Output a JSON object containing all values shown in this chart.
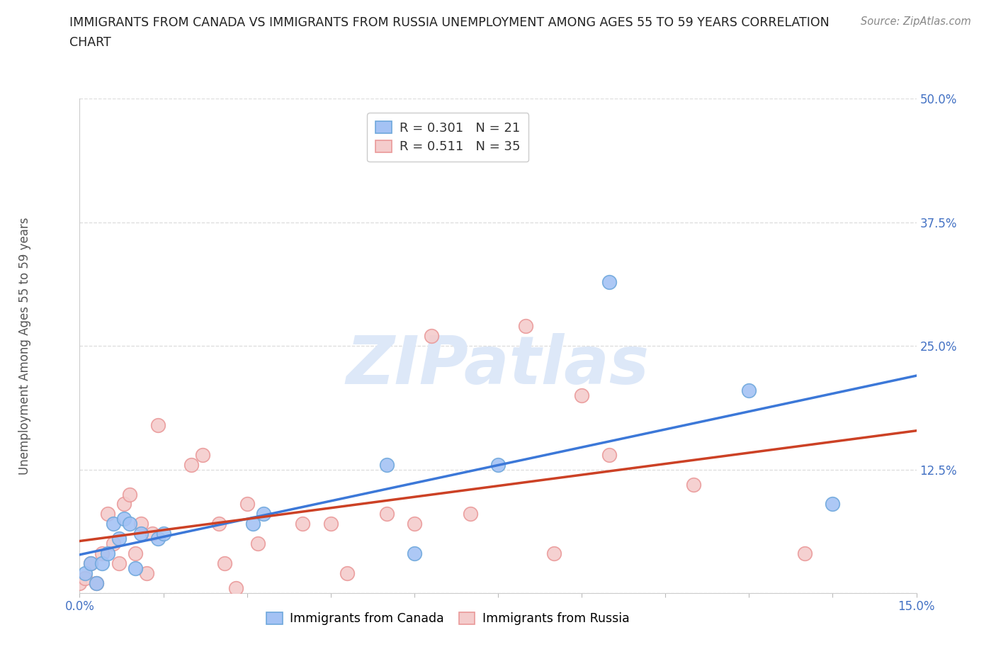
{
  "title_line1": "IMMIGRANTS FROM CANADA VS IMMIGRANTS FROM RUSSIA UNEMPLOYMENT AMONG AGES 55 TO 59 YEARS CORRELATION",
  "title_line2": "CHART",
  "source": "Source: ZipAtlas.com",
  "ylabel": "Unemployment Among Ages 55 to 59 years",
  "xlim": [
    0.0,
    0.15
  ],
  "ylim": [
    0.0,
    0.5
  ],
  "ytick_positions": [
    0.0,
    0.125,
    0.25,
    0.375,
    0.5
  ],
  "ytick_labels": [
    "",
    "12.5%",
    "25.0%",
    "37.5%",
    "50.0%"
  ],
  "xtick_positions": [
    0.0,
    0.015,
    0.03,
    0.045,
    0.06,
    0.075,
    0.09,
    0.105,
    0.12,
    0.135,
    0.15
  ],
  "xtick_labels": [
    "0.0%",
    "",
    "",
    "",
    "",
    "",
    "",
    "",
    "",
    "",
    "15.0%"
  ],
  "canada_color_face": "#a4c2f4",
  "canada_color_edge": "#6fa8dc",
  "russia_color_face": "#f4cccc",
  "russia_color_edge": "#ea9999",
  "canada_line_color": "#3c78d8",
  "russia_line_color": "#cc4125",
  "legend_canada_R": "0.301",
  "legend_canada_N": "21",
  "legend_russia_R": "0.511",
  "legend_russia_N": "35",
  "canada_x": [
    0.001,
    0.002,
    0.003,
    0.004,
    0.005,
    0.006,
    0.007,
    0.008,
    0.009,
    0.01,
    0.011,
    0.014,
    0.015,
    0.031,
    0.033,
    0.055,
    0.06,
    0.075,
    0.095,
    0.12,
    0.135
  ],
  "canada_y": [
    0.02,
    0.03,
    0.01,
    0.03,
    0.04,
    0.07,
    0.055,
    0.075,
    0.07,
    0.025,
    0.06,
    0.055,
    0.06,
    0.07,
    0.08,
    0.13,
    0.04,
    0.13,
    0.315,
    0.205,
    0.09
  ],
  "russia_x": [
    0.0,
    0.001,
    0.002,
    0.003,
    0.004,
    0.005,
    0.006,
    0.007,
    0.008,
    0.009,
    0.01,
    0.011,
    0.012,
    0.013,
    0.014,
    0.02,
    0.022,
    0.025,
    0.026,
    0.028,
    0.03,
    0.032,
    0.04,
    0.045,
    0.048,
    0.055,
    0.06,
    0.063,
    0.07,
    0.08,
    0.085,
    0.09,
    0.095,
    0.11,
    0.13
  ],
  "russia_y": [
    0.01,
    0.015,
    0.03,
    0.01,
    0.04,
    0.08,
    0.05,
    0.03,
    0.09,
    0.1,
    0.04,
    0.07,
    0.02,
    0.06,
    0.17,
    0.13,
    0.14,
    0.07,
    0.03,
    0.005,
    0.09,
    0.05,
    0.07,
    0.07,
    0.02,
    0.08,
    0.07,
    0.26,
    0.08,
    0.27,
    0.04,
    0.2,
    0.14,
    0.11,
    0.04
  ],
  "watermark": "ZIPatlas",
  "background_color": "#ffffff",
  "grid_color": "#dddddd",
  "tick_label_color": "#4472c4",
  "ylabel_color": "#555555",
  "title_color": "#222222",
  "source_color": "#888888"
}
